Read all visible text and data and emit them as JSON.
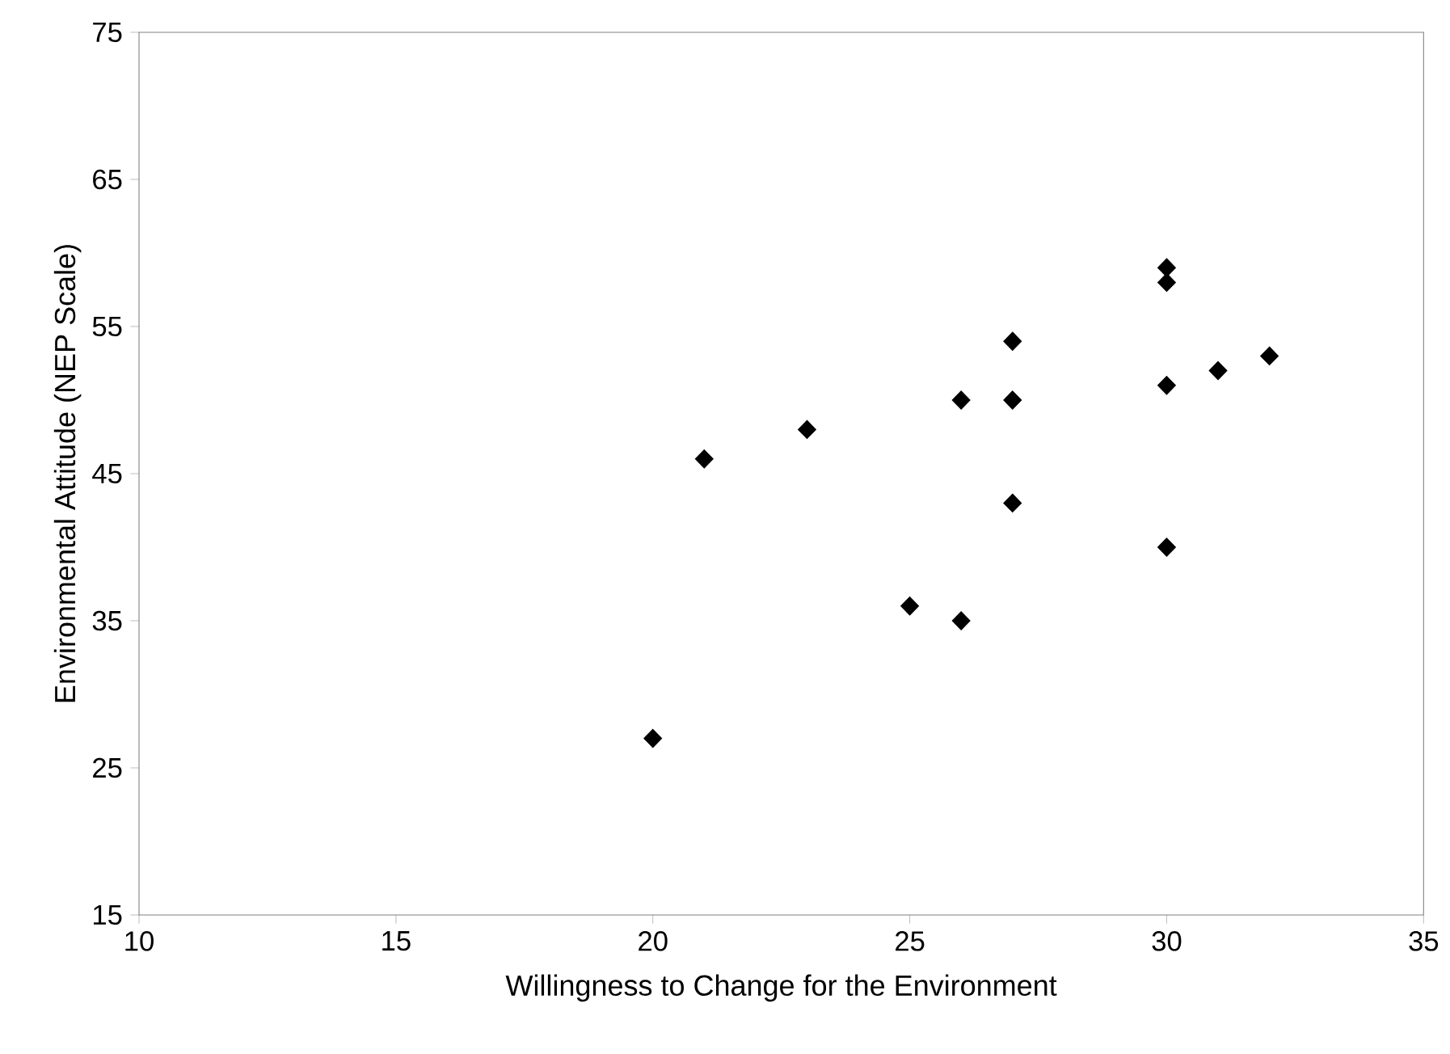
{
  "chart_data": {
    "type": "scatter",
    "xlabel": "Willingness to Change for the Environment",
    "ylabel": "Environmental Attitude (NEP Scale)",
    "series": [
      {
        "color": "#000000",
        "x": [
          20,
          21,
          23,
          25,
          26,
          26,
          27,
          27,
          27,
          30,
          30,
          30,
          30,
          31,
          32
        ],
        "values": [
          27,
          46,
          48,
          36,
          50,
          35,
          54,
          50,
          43,
          59,
          58,
          51,
          40,
          52,
          53
        ]
      }
    ],
    "xlim": [
      10,
      35
    ],
    "xticks": [
      10,
      15,
      20,
      25,
      30,
      35
    ],
    "ylim": [
      15,
      75
    ],
    "yticks": [
      15,
      25,
      35,
      45,
      55,
      65,
      75
    ],
    "marker": "diamond"
  }
}
